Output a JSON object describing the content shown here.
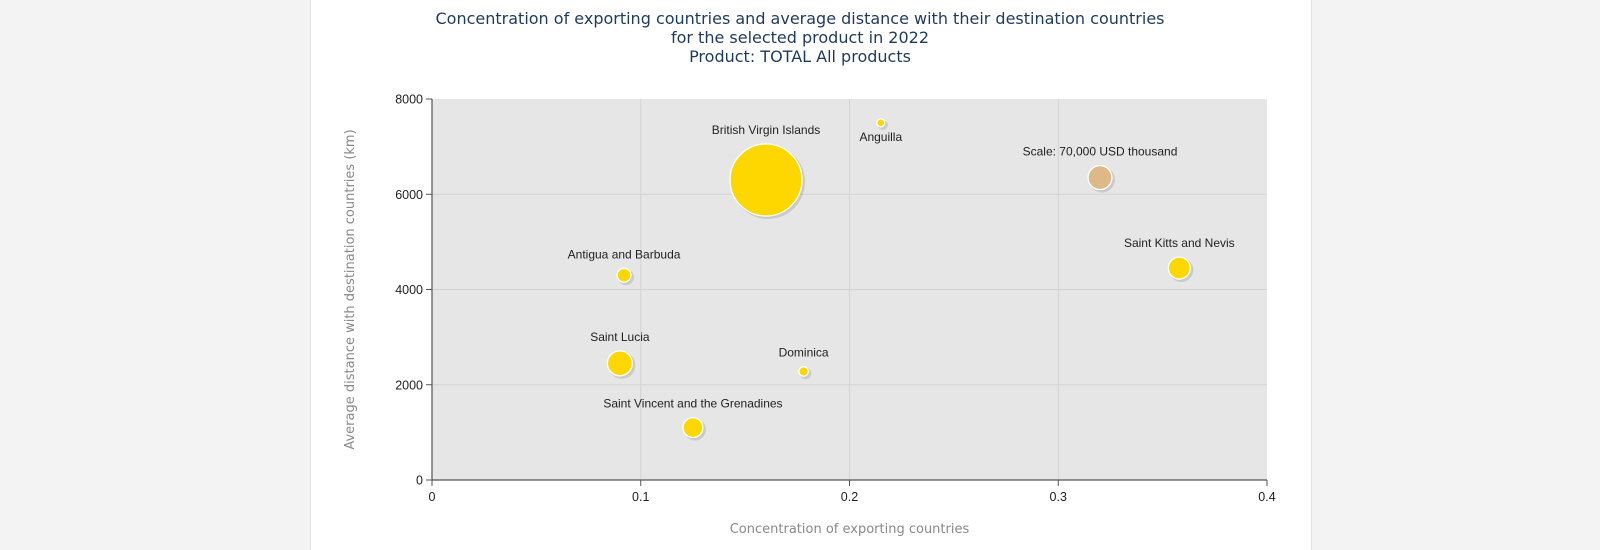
{
  "chart_data": {
    "type": "scatter",
    "title": [
      "Concentration of exporting countries and average distance with their destination countries",
      "for the selected product in 2022",
      "Product: TOTAL All products"
    ],
    "xlabel": "Concentration of exporting countries",
    "ylabel": "Average distance with destination countries (km)",
    "xlim": [
      0,
      0.4
    ],
    "ylim": [
      0,
      8000
    ],
    "x_ticks": [
      "0",
      "0.1",
      "0.2",
      "0.3",
      "0.4"
    ],
    "y_ticks": [
      "0",
      "2000",
      "4000",
      "6000",
      "8000"
    ],
    "grid": true,
    "bubble_color": "#ffd700",
    "scale_color": "#deb887",
    "plot_background": "#e6e6e6",
    "points": [
      {
        "name": "British Virgin Islands",
        "x": 0.16,
        "y": 6300,
        "size": 1
      },
      {
        "name": "Anguilla",
        "x": 0.215,
        "y": 7500,
        "size": 0.006
      },
      {
        "name": "Antigua and Barbuda",
        "x": 0.092,
        "y": 4300,
        "size": 0.037
      },
      {
        "name": "Saint Lucia",
        "x": 0.09,
        "y": 2450,
        "size": 0.12
      },
      {
        "name": "Dominica",
        "x": 0.178,
        "y": 2280,
        "size": 0.017
      },
      {
        "name": "Saint Vincent and the Grenadines",
        "x": 0.125,
        "y": 1100,
        "size": 0.076
      },
      {
        "name": "Saint Kitts and Nevis",
        "x": 0.358,
        "y": 4450,
        "size": 0.093
      }
    ],
    "scale_marker": {
      "label": "Scale: 70,000 USD thousand",
      "x": 0.32,
      "y": 6350,
      "size": 0.11
    }
  }
}
